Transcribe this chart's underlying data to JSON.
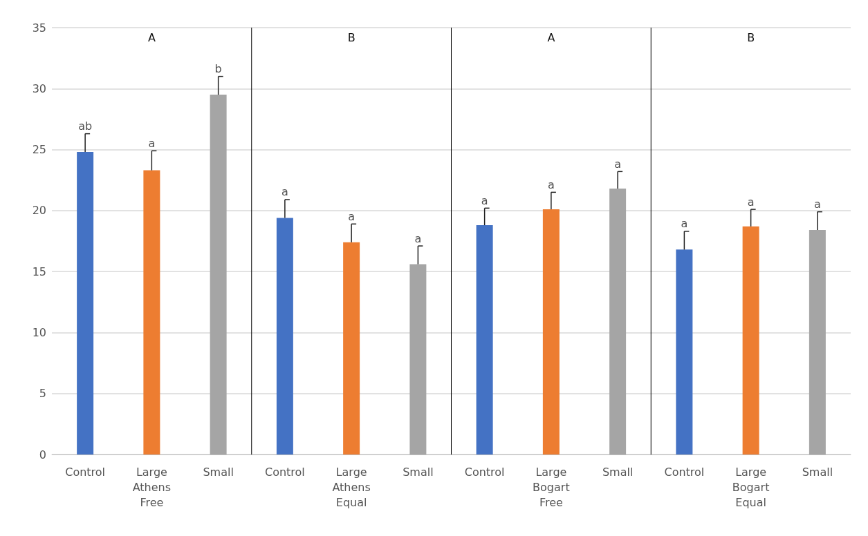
{
  "chart_data": {
    "type": "bar",
    "categories": [
      "Control",
      "Large",
      "Small",
      "Control",
      "Large",
      "Small",
      "Control",
      "Large",
      "Small",
      "Control",
      "Large",
      "Small"
    ],
    "values": [
      24.8,
      23.3,
      29.5,
      19.4,
      17.4,
      15.6,
      18.8,
      20.1,
      21.8,
      16.8,
      18.7,
      18.4
    ],
    "colors": [
      "#4472c4",
      "#ed7d31",
      "#a5a5a5",
      "#4472c4",
      "#ed7d31",
      "#a5a5a5",
      "#4472c4",
      "#ed7d31",
      "#a5a5a5",
      "#4472c4",
      "#ed7d31",
      "#a5a5a5"
    ],
    "errors": [
      [
        24.8,
        26.3
      ],
      [
        23.3,
        24.9
      ],
      [
        29.5,
        31.0
      ],
      [
        19.4,
        20.9
      ],
      [
        17.4,
        18.9
      ],
      [
        15.6,
        17.1
      ],
      [
        18.8,
        20.2
      ],
      [
        20.1,
        21.5
      ],
      [
        21.8,
        23.2
      ],
      [
        16.8,
        18.3
      ],
      [
        18.7,
        20.1
      ],
      [
        18.4,
        19.9
      ]
    ],
    "value_labels": [
      "ab",
      "a",
      "b",
      "a",
      "a",
      "a",
      "a",
      "a",
      "a",
      "a",
      "a",
      "a"
    ],
    "annotations": [
      "A",
      "B",
      "A",
      "B",
      "Athens Free",
      "Athens Equal",
      "Bogart Free",
      "Bogart Equal"
    ],
    "ylim": [
      0,
      35
    ],
    "yticks": [
      0,
      5,
      10,
      15,
      20,
      25,
      30,
      35
    ],
    "grid": "y"
  }
}
